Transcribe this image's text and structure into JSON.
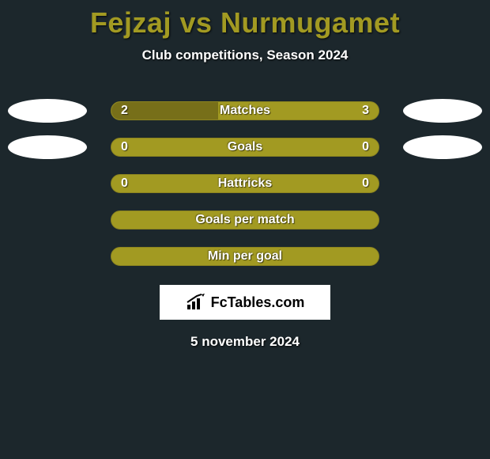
{
  "title": "Fejzaj vs Nurmugamet",
  "subtitle": "Club competitions, Season 2024",
  "date": "5 november 2024",
  "logo_text": "FcTables.com",
  "colors": {
    "background": "#1c272c",
    "title": "#a29a22",
    "bar_bg": "#a29a22",
    "bar_fill": "#776f19",
    "bar_border": "#8c8420",
    "text": "#ffffff",
    "ellipse": "#ffffff",
    "logo_bg": "#ffffff"
  },
  "rows": [
    {
      "label": "Matches",
      "left": "2",
      "right": "3",
      "fill_pct": 40,
      "show_vals": true,
      "show_left_ellipse": true,
      "show_right_ellipse": true
    },
    {
      "label": "Goals",
      "left": "0",
      "right": "0",
      "fill_pct": 0,
      "show_vals": true,
      "show_left_ellipse": true,
      "show_right_ellipse": true
    },
    {
      "label": "Hattricks",
      "left": "0",
      "right": "0",
      "fill_pct": 0,
      "show_vals": true,
      "show_left_ellipse": false,
      "show_right_ellipse": false
    },
    {
      "label": "Goals per match",
      "left": "",
      "right": "",
      "fill_pct": 0,
      "show_vals": false,
      "show_left_ellipse": false,
      "show_right_ellipse": false
    },
    {
      "label": "Min per goal",
      "left": "",
      "right": "",
      "fill_pct": 0,
      "show_vals": false,
      "show_left_ellipse": false,
      "show_right_ellipse": false
    }
  ]
}
